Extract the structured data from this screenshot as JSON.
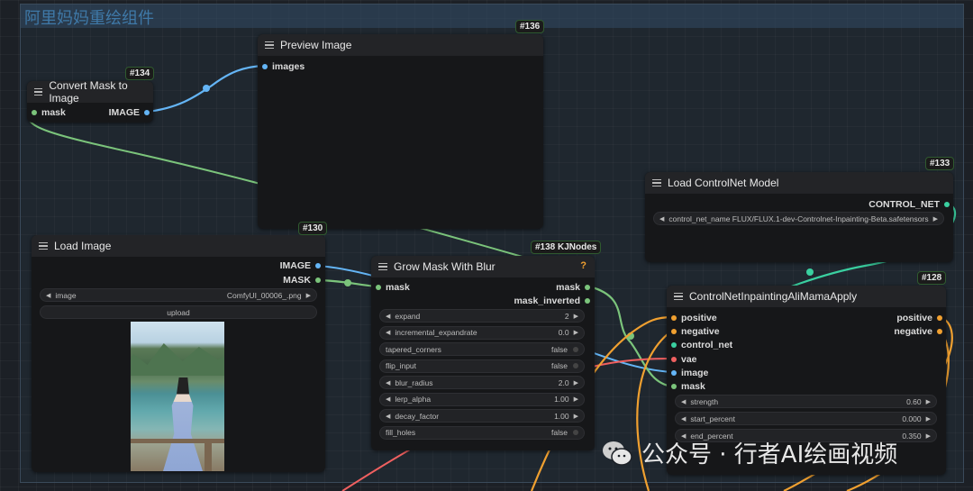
{
  "group": {
    "title": "阿里妈妈重绘组件"
  },
  "nodes": {
    "convert_mask": {
      "badge": "#134",
      "title": "Convert Mask to Image",
      "input_mask": "mask",
      "output_image": "IMAGE"
    },
    "preview_image": {
      "badge": "#136",
      "title": "Preview Image",
      "input_images": "images"
    },
    "load_controlnet": {
      "badge": "#133",
      "title": "Load ControlNet Model",
      "output": "CONTROL_NET",
      "widget_label": "control_net_name",
      "widget_value": "FLUX/FLUX.1-dev-Controlnet-Inpainting-Beta.safetensors"
    },
    "load_image": {
      "badge": "#130",
      "title": "Load Image",
      "output_image": "IMAGE",
      "output_mask": "MASK",
      "widget_label": "image",
      "widget_value": "ComfyUI_00006_.png",
      "upload_label": "upload"
    },
    "grow_mask": {
      "badge": "#138 KJNodes",
      "title": "Grow Mask With Blur",
      "help": "?",
      "input_mask": "mask",
      "output_mask": "mask",
      "output_mask_inverted": "mask_inverted",
      "widgets": [
        {
          "label": "expand",
          "value": "2",
          "type": "number"
        },
        {
          "label": "incremental_expandrate",
          "value": "0.0",
          "type": "number"
        },
        {
          "label": "tapered_corners",
          "value": "false",
          "type": "toggle"
        },
        {
          "label": "flip_input",
          "value": "false",
          "type": "toggle"
        },
        {
          "label": "blur_radius",
          "value": "2.0",
          "type": "number"
        },
        {
          "label": "lerp_alpha",
          "value": "1.00",
          "type": "number"
        },
        {
          "label": "decay_factor",
          "value": "1.00",
          "type": "number"
        },
        {
          "label": "fill_holes",
          "value": "false",
          "type": "toggle"
        }
      ]
    },
    "cn_apply": {
      "badge": "#128",
      "title": "ControlNetInpaintingAliMamaApply",
      "inputs": [
        "positive",
        "negative",
        "control_net",
        "vae",
        "image",
        "mask"
      ],
      "outputs": [
        "positive",
        "negative"
      ],
      "widgets": [
        {
          "label": "strength",
          "value": "0.60"
        },
        {
          "label": "start_percent",
          "value": "0.000"
        },
        {
          "label": "end_percent",
          "value": "0.350"
        }
      ]
    }
  },
  "watermark": {
    "text": "公众号 · 行者AI绘画视频"
  },
  "colors": {
    "mask_wire": "#7bc47b",
    "image_wire": "#64b5f6",
    "conditioning_wire": "#f0a030",
    "controlnet_wire": "#3ad0a0",
    "vae_wire": "#f06060"
  }
}
